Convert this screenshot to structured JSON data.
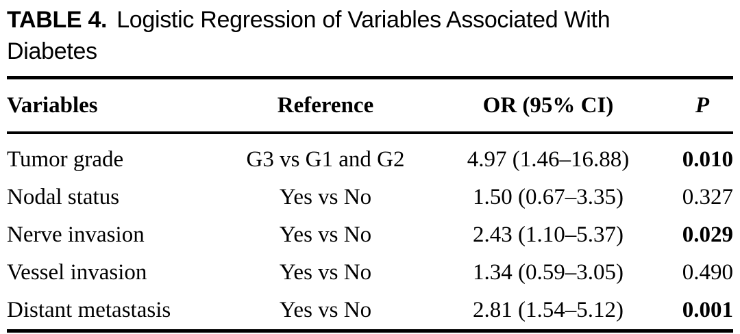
{
  "colors": {
    "text": "#000000",
    "background": "#ffffff",
    "rule": "#000000"
  },
  "table": {
    "label": "TABLE 4.",
    "title": "Logistic Regression of Variables Associated With Diabetes",
    "columns": [
      "Variables",
      "Reference",
      "OR (95% CI)",
      "P"
    ],
    "rows": [
      {
        "variable": "Tumor grade",
        "reference": "G3 vs G1 and G2",
        "or_ci": "4.97 (1.46–16.88)",
        "p": "0.010",
        "p_significant": true
      },
      {
        "variable": "Nodal status",
        "reference": "Yes vs No",
        "or_ci": "1.50 (0.67–3.35)",
        "p": "0.327",
        "p_significant": false
      },
      {
        "variable": "Nerve invasion",
        "reference": "Yes vs No",
        "or_ci": "2.43 (1.10–5.37)",
        "p": "0.029",
        "p_significant": true
      },
      {
        "variable": "Vessel invasion",
        "reference": "Yes vs No",
        "or_ci": "1.34 (0.59–3.05)",
        "p": "0.490",
        "p_significant": false
      },
      {
        "variable": "Distant metastasis",
        "reference": "Yes vs No",
        "or_ci": "2.81 (1.54–5.12)",
        "p": "0.001",
        "p_significant": true
      }
    ]
  }
}
